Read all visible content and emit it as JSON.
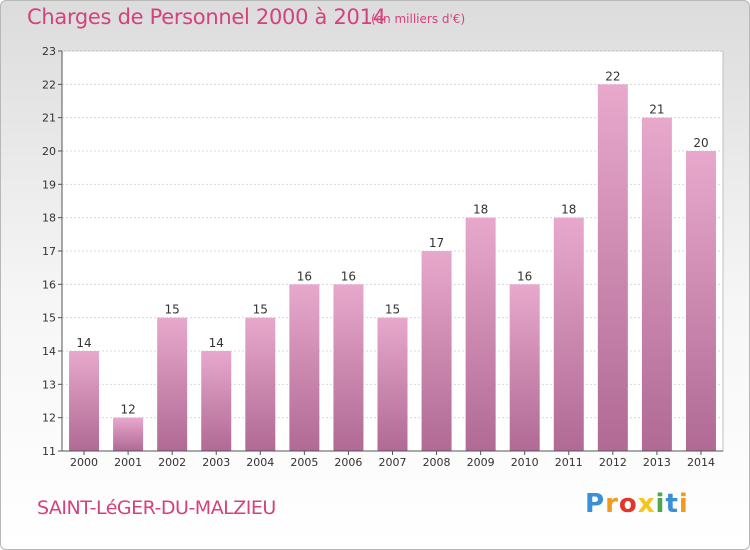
{
  "header": {
    "title": "Charges de Personnel 2000 à 2014",
    "subtitle": "(en milliers d'€)"
  },
  "footer": {
    "commune": "SAINT-LéGER-DU-MALZIEU",
    "logo": "Proxiti",
    "logo_letters": [
      {
        "ch": "P",
        "color": "#3a8fd6"
      },
      {
        "ch": "r",
        "color": "#f29a1f"
      },
      {
        "ch": "o",
        "color": "#e2362b"
      },
      {
        "ch": "x",
        "color": "#f5c518"
      },
      {
        "ch": "i",
        "color": "#4ba84b"
      },
      {
        "ch": "t",
        "color": "#3a8fd6"
      },
      {
        "ch": "i",
        "color": "#f29a1f"
      }
    ]
  },
  "chart_data": {
    "type": "bar",
    "title": "Charges de Personnel 2000 à 2014",
    "subtitle": "(en milliers d'€)",
    "categories": [
      "2000",
      "2001",
      "2002",
      "2003",
      "2004",
      "2005",
      "2006",
      "2007",
      "2008",
      "2009",
      "2010",
      "2011",
      "2012",
      "2013",
      "2014"
    ],
    "values": [
      14,
      12,
      15,
      14,
      15,
      16,
      16,
      15,
      17,
      18,
      16,
      18,
      22,
      21,
      20
    ],
    "ylim": [
      11,
      23
    ],
    "yticks": [
      11,
      12,
      13,
      14,
      15,
      16,
      17,
      18,
      19,
      20,
      21,
      22,
      23
    ],
    "grid": "horizontal",
    "bar_color_top": "#e8a8cc",
    "bar_color_bottom": "#b06a94"
  }
}
